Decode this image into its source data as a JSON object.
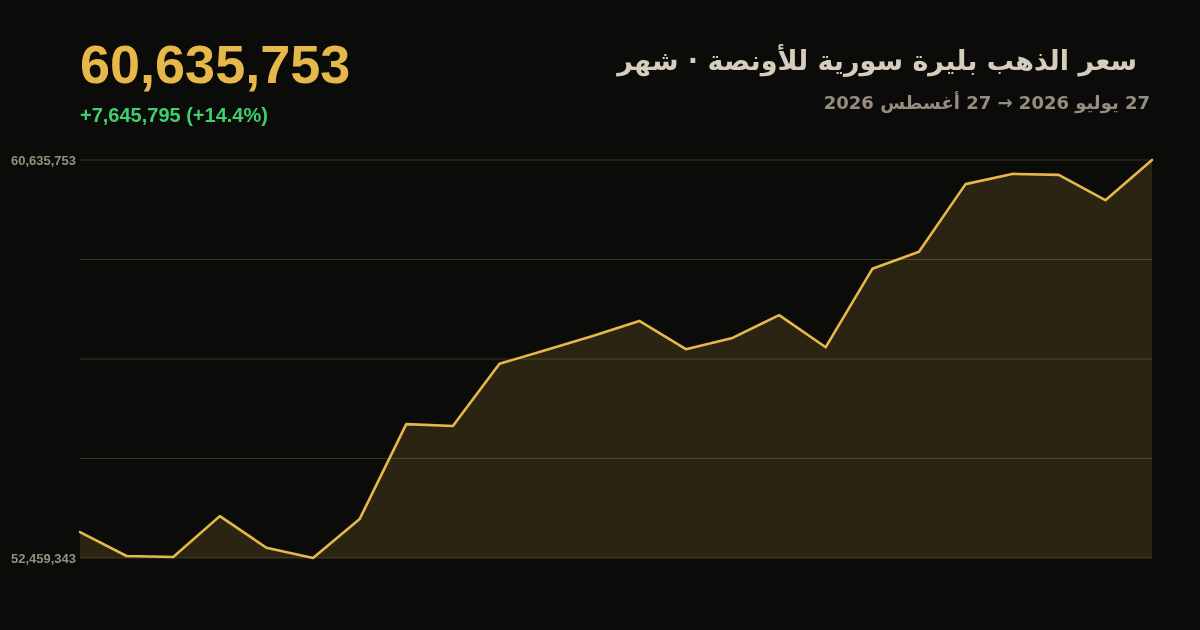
{
  "chart_data": {
    "type": "area",
    "title": "سعر الذهب بليرة سورية للأونصة · شهر",
    "subtitle": "27 يوليو 2026 → 27 أغسطس 2026",
    "annotations": [
      "60,635,753",
      "+7,645,795 (+14.4%)"
    ],
    "categories": [
      null,
      null,
      null,
      null,
      null,
      null,
      null,
      null,
      null,
      null,
      null,
      null,
      null,
      null,
      null,
      null,
      null,
      null,
      null,
      null,
      null,
      null,
      null,
      null
    ],
    "values": [
      52990000,
      52500000,
      52480000,
      53320000,
      52670000,
      52459343,
      53260000,
      55210000,
      55170000,
      56450000,
      56730000,
      57020000,
      57330000,
      56750000,
      56980000,
      57450000,
      56790000,
      58400000,
      58750000,
      60140000,
      60350000,
      60330000,
      59810000,
      60635753
    ],
    "color": "#e6b84a",
    "ylim": [
      52459343,
      60635753
    ],
    "yticks": [
      {
        "value": 52459343,
        "label": "52,459,343"
      },
      {
        "value": 54503445.5,
        "label": null
      },
      {
        "value": 56547548,
        "label": null
      },
      {
        "value": 58591650.5,
        "label": null
      },
      {
        "value": 60635753,
        "label": "60,635,753"
      }
    ],
    "grid": "y",
    "tick_labels": "y"
  }
}
